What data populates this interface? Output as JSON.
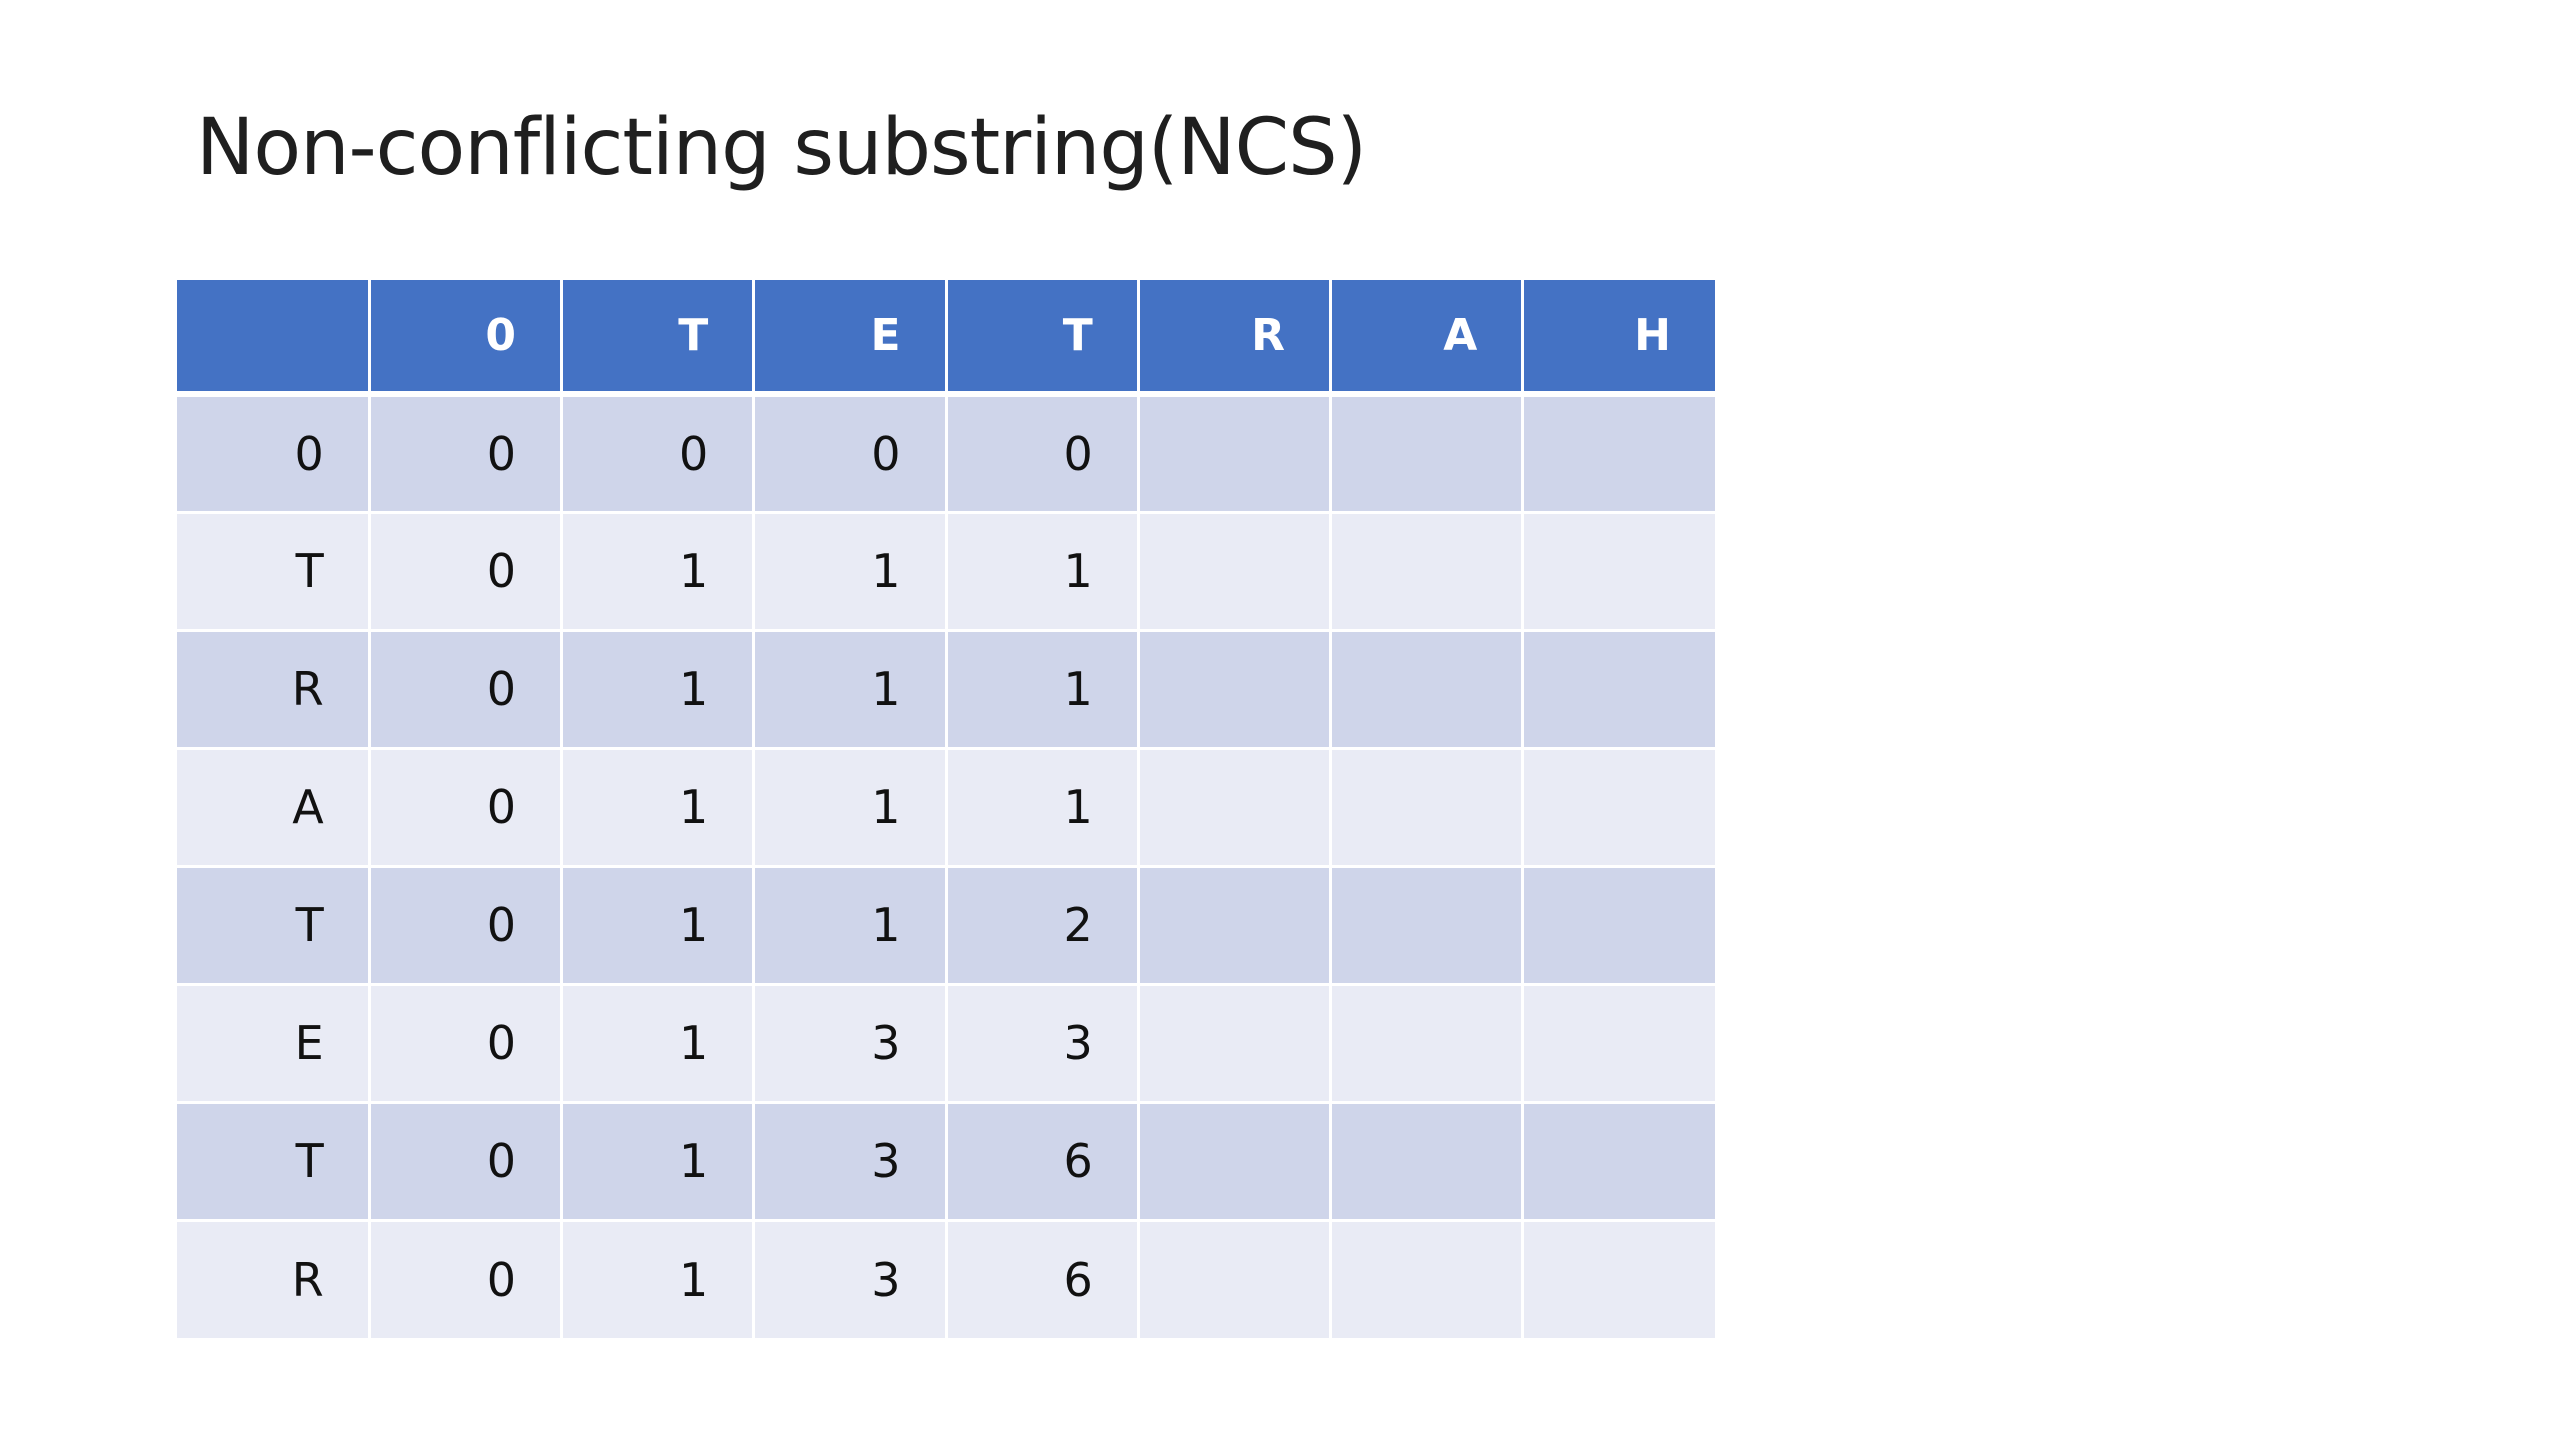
{
  "title": "Non-conflicting substring(NCS)",
  "table": {
    "header": [
      "",
      "0",
      "T",
      "E",
      "T",
      "R",
      "A",
      "H"
    ],
    "rows": [
      [
        "0",
        "0",
        "0",
        "0",
        "0",
        "",
        "",
        ""
      ],
      [
        "T",
        "0",
        "1",
        "1",
        "1",
        "",
        "",
        ""
      ],
      [
        "R",
        "0",
        "1",
        "1",
        "1",
        "",
        "",
        ""
      ],
      [
        "A",
        "0",
        "1",
        "1",
        "1",
        "",
        "",
        ""
      ],
      [
        "T",
        "0",
        "1",
        "1",
        "2",
        "",
        "",
        ""
      ],
      [
        "E",
        "0",
        "1",
        "3",
        "3",
        "",
        "",
        ""
      ],
      [
        "T",
        "0",
        "1",
        "3",
        "6",
        "",
        "",
        ""
      ],
      [
        "R",
        "0",
        "1",
        "3",
        "6",
        "",
        "",
        ""
      ]
    ],
    "colors": {
      "header_bg": "#4472c4",
      "row_odd_bg": "#cfd5ea",
      "row_even_bg": "#e9ebf5"
    }
  }
}
